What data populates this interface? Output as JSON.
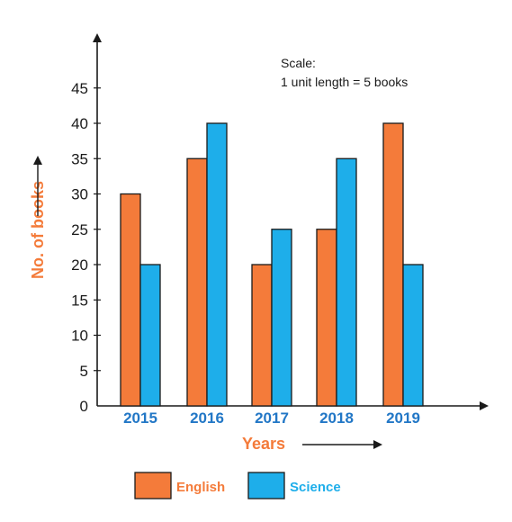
{
  "chart_data": {
    "type": "bar",
    "categories": [
      "2015",
      "2016",
      "2017",
      "2018",
      "2019"
    ],
    "series": [
      {
        "name": "English",
        "values": [
          30,
          35,
          20,
          25,
          40
        ],
        "color": "#f47b3a"
      },
      {
        "name": "Science",
        "values": [
          20,
          40,
          25,
          35,
          20
        ],
        "color": "#1eaeea"
      }
    ],
    "y_ticks": [
      "0",
      "5",
      "10",
      "15",
      "20",
      "25",
      "30",
      "35",
      "40",
      "45"
    ],
    "ylim": [
      0,
      50
    ],
    "xlabel": "Years",
    "ylabel": "No. of books",
    "grid": false,
    "legend_position": "bottom"
  },
  "scale_note": {
    "line1": "Scale:",
    "line2": "1 unit length = 5 books"
  },
  "colors": {
    "axis": "#1a1a1a",
    "x_tick_text": "#2277c6",
    "axis_title": "#f47b3a"
  }
}
